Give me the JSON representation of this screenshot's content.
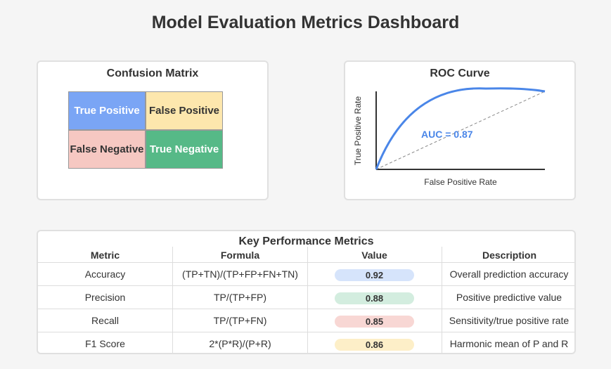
{
  "page": {
    "title": "Model Evaluation Metrics Dashboard"
  },
  "confusion_matrix": {
    "title": "Confusion Matrix",
    "cells": [
      {
        "label": "True Positive",
        "color": "#7aa5f5",
        "text_color": "#ffffff"
      },
      {
        "label": "False Positive",
        "color": "#fde7ad",
        "text_color": "#333333"
      },
      {
        "label": "False Negative",
        "color": "#f6c8c2",
        "text_color": "#333333"
      },
      {
        "label": "True Negative",
        "color": "#56b987",
        "text_color": "#ffffff"
      }
    ]
  },
  "roc": {
    "title": "ROC Curve",
    "xlabel": "False Positive Rate",
    "ylabel": "True Positive Rate",
    "auc_label": "AUC = 0.87",
    "curve_color": "#4a86e8"
  },
  "metrics_table": {
    "title": "Key Performance Metrics",
    "headers": [
      "Metric",
      "Formula",
      "Value",
      "Description"
    ],
    "rows": [
      {
        "metric": "Accuracy",
        "formula": "(TP+TN)/(TP+FP+FN+TN)",
        "value": "0.92",
        "description": "Overall prediction accuracy",
        "pill_color": "#d6e4fb"
      },
      {
        "metric": "Precision",
        "formula": "TP/(TP+FP)",
        "value": "0.88",
        "description": "Positive predictive value",
        "pill_color": "#d3eddf"
      },
      {
        "metric": "Recall",
        "formula": "TP/(TP+FN)",
        "value": "0.85",
        "description": "Sensitivity/true positive rate",
        "pill_color": "#f8d7d4"
      },
      {
        "metric": "F1 Score",
        "formula": "2*(P*R)/(P+R)",
        "value": "0.86",
        "description": "Harmonic mean of P and R",
        "pill_color": "#fdefc8"
      }
    ]
  }
}
